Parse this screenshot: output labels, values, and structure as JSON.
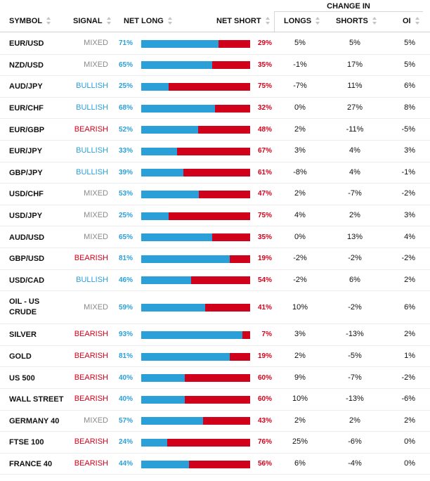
{
  "header": {
    "change_in": "CHANGE IN",
    "symbol": "SYMBOL",
    "signal": "SIGNAL",
    "net_long": "NET LONG",
    "net_short": "NET SHORT",
    "longs": "LONGS",
    "shorts": "SHORTS",
    "oi": "OI"
  },
  "colors": {
    "long": "#2a9fd8",
    "short": "#d0021b",
    "mixed": "#8a8a8a"
  },
  "rows": [
    {
      "symbol": "EUR/USD",
      "signal": "MIXED",
      "net_long": "71%",
      "net_short": "29%",
      "long_fraction": 0.71,
      "longs": "5%",
      "shorts": "5%",
      "oi": "5%"
    },
    {
      "symbol": "NZD/USD",
      "signal": "MIXED",
      "net_long": "65%",
      "net_short": "35%",
      "long_fraction": 0.65,
      "longs": "-1%",
      "shorts": "17%",
      "oi": "5%"
    },
    {
      "symbol": "AUD/JPY",
      "signal": "BULLISH",
      "net_long": "25%",
      "net_short": "75%",
      "long_fraction": 0.25,
      "longs": "-7%",
      "shorts": "11%",
      "oi": "6%"
    },
    {
      "symbol": "EUR/CHF",
      "signal": "BULLISH",
      "net_long": "68%",
      "net_short": "32%",
      "long_fraction": 0.68,
      "longs": "0%",
      "shorts": "27%",
      "oi": "8%"
    },
    {
      "symbol": "EUR/GBP",
      "signal": "BEARISH",
      "net_long": "52%",
      "net_short": "48%",
      "long_fraction": 0.52,
      "longs": "2%",
      "shorts": "-11%",
      "oi": "-5%"
    },
    {
      "symbol": "EUR/JPY",
      "signal": "BULLISH",
      "net_long": "33%",
      "net_short": "67%",
      "long_fraction": 0.33,
      "longs": "3%",
      "shorts": "4%",
      "oi": "3%"
    },
    {
      "symbol": "GBP/JPY",
      "signal": "BULLISH",
      "net_long": "39%",
      "net_short": "61%",
      "long_fraction": 0.39,
      "longs": "-8%",
      "shorts": "4%",
      "oi": "-1%"
    },
    {
      "symbol": "USD/CHF",
      "signal": "MIXED",
      "net_long": "53%",
      "net_short": "47%",
      "long_fraction": 0.53,
      "longs": "2%",
      "shorts": "-7%",
      "oi": "-2%"
    },
    {
      "symbol": "USD/JPY",
      "signal": "MIXED",
      "net_long": "25%",
      "net_short": "75%",
      "long_fraction": 0.25,
      "longs": "4%",
      "shorts": "2%",
      "oi": "3%"
    },
    {
      "symbol": "AUD/USD",
      "signal": "MIXED",
      "net_long": "65%",
      "net_short": "35%",
      "long_fraction": 0.65,
      "longs": "0%",
      "shorts": "13%",
      "oi": "4%"
    },
    {
      "symbol": "GBP/USD",
      "signal": "BEARISH",
      "net_long": "81%",
      "net_short": "19%",
      "long_fraction": 0.81,
      "longs": "-2%",
      "shorts": "-2%",
      "oi": "-2%"
    },
    {
      "symbol": "USD/CAD",
      "signal": "BULLISH",
      "net_long": "46%",
      "net_short": "54%",
      "long_fraction": 0.46,
      "longs": "-2%",
      "shorts": "6%",
      "oi": "2%"
    },
    {
      "symbol": "OIL - US CRUDE",
      "signal": "MIXED",
      "net_long": "59%",
      "net_short": "41%",
      "long_fraction": 0.59,
      "longs": "10%",
      "shorts": "-2%",
      "oi": "6%"
    },
    {
      "symbol": "SILVER",
      "signal": "BEARISH",
      "net_long": "93%",
      "net_short": "7%",
      "long_fraction": 0.93,
      "longs": "3%",
      "shorts": "-13%",
      "oi": "2%"
    },
    {
      "symbol": "GOLD",
      "signal": "BEARISH",
      "net_long": "81%",
      "net_short": "19%",
      "long_fraction": 0.81,
      "longs": "2%",
      "shorts": "-5%",
      "oi": "1%"
    },
    {
      "symbol": "US 500",
      "signal": "BEARISH",
      "net_long": "40%",
      "net_short": "60%",
      "long_fraction": 0.4,
      "longs": "9%",
      "shorts": "-7%",
      "oi": "-2%"
    },
    {
      "symbol": "WALL STREET",
      "signal": "BEARISH",
      "net_long": "40%",
      "net_short": "60%",
      "long_fraction": 0.4,
      "longs": "10%",
      "shorts": "-13%",
      "oi": "-6%"
    },
    {
      "symbol": "GERMANY 40",
      "signal": "MIXED",
      "net_long": "57%",
      "net_short": "43%",
      "long_fraction": 0.57,
      "longs": "2%",
      "shorts": "2%",
      "oi": "2%"
    },
    {
      "symbol": "FTSE 100",
      "signal": "BEARISH",
      "net_long": "24%",
      "net_short": "76%",
      "long_fraction": 0.24,
      "longs": "25%",
      "shorts": "-6%",
      "oi": "0%"
    },
    {
      "symbol": "FRANCE 40",
      "signal": "BEARISH",
      "net_long": "44%",
      "net_short": "56%",
      "long_fraction": 0.44,
      "longs": "6%",
      "shorts": "-4%",
      "oi": "0%"
    }
  ]
}
